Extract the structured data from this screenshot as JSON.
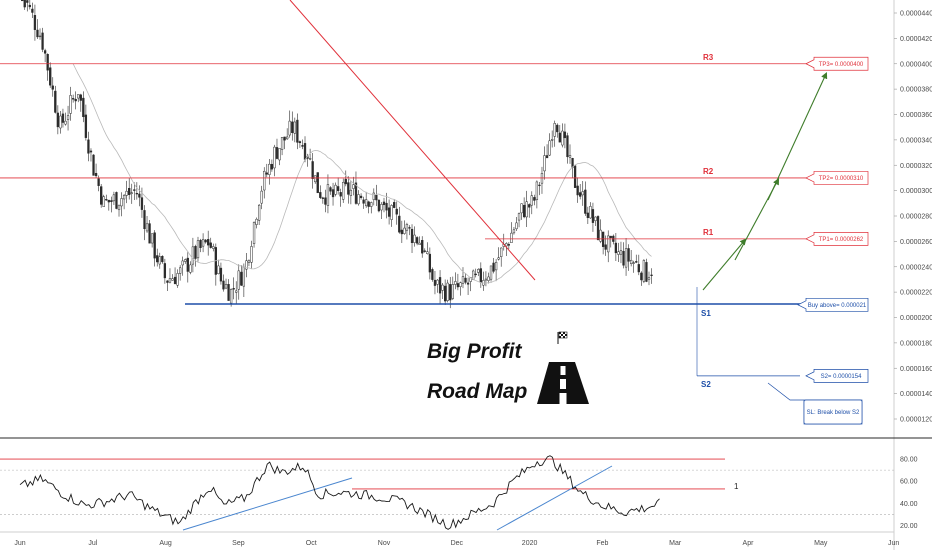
{
  "chart_data": {
    "type": "candlestick",
    "price_axis": {
      "ylim": [
        1.1e-06,
        4.5e-06
      ],
      "ticks": [
        "0.00004400",
        "0.00004200",
        "0.00004000",
        "0.00003800",
        "0.00003600",
        "0.00003400",
        "0.00003200",
        "0.00003000",
        "0.00002800",
        "0.00002600",
        "0.00002400",
        "0.00002200",
        "0.00002000",
        "0.00001800",
        "0.00001600",
        "0.00001400",
        "0.00001200"
      ]
    },
    "x_axis": {
      "labels": [
        "Jun",
        "Jul",
        "Aug",
        "Sep",
        "Oct",
        "Nov",
        "Dec",
        "2020",
        "Feb",
        "Mar",
        "Apr",
        "May",
        "Jun"
      ]
    },
    "price_path": [
      {
        "t": 0.0,
        "p": 4.6e-06
      },
      {
        "t": 0.3,
        "p": 4.2e-06
      },
      {
        "t": 0.55,
        "p": 3.5e-06
      },
      {
        "t": 0.8,
        "p": 3.8e-06
      },
      {
        "t": 1.0,
        "p": 3.2e-06
      },
      {
        "t": 1.15,
        "p": 2.9e-06
      },
      {
        "t": 1.4,
        "p": 2.95e-06
      },
      {
        "t": 1.6,
        "p": 3e-06
      },
      {
        "t": 1.8,
        "p": 2.6e-06
      },
      {
        "t": 2.0,
        "p": 2.3e-06
      },
      {
        "t": 2.2,
        "p": 2.35e-06
      },
      {
        "t": 2.4,
        "p": 2.5e-06
      },
      {
        "t": 2.6,
        "p": 2.6e-06
      },
      {
        "t": 2.75,
        "p": 2.3e-06
      },
      {
        "t": 2.9,
        "p": 2.2e-06
      },
      {
        "t": 3.1,
        "p": 2.4e-06
      },
      {
        "t": 3.3,
        "p": 3e-06
      },
      {
        "t": 3.5,
        "p": 3.3e-06
      },
      {
        "t": 3.75,
        "p": 3.5e-06
      },
      {
        "t": 3.95,
        "p": 3.3e-06
      },
      {
        "t": 4.1,
        "p": 3e-06
      },
      {
        "t": 4.3,
        "p": 2.95e-06
      },
      {
        "t": 4.5,
        "p": 3e-06
      },
      {
        "t": 4.8,
        "p": 2.95e-06
      },
      {
        "t": 5.0,
        "p": 2.85e-06
      },
      {
        "t": 5.3,
        "p": 2.7e-06
      },
      {
        "t": 5.5,
        "p": 2.6e-06
      },
      {
        "t": 5.7,
        "p": 2.25e-06
      },
      {
        "t": 5.9,
        "p": 2.2e-06
      },
      {
        "t": 6.1,
        "p": 2.25e-06
      },
      {
        "t": 6.3,
        "p": 2.3e-06
      },
      {
        "t": 6.5,
        "p": 2.4e-06
      },
      {
        "t": 6.7,
        "p": 2.6e-06
      },
      {
        "t": 6.9,
        "p": 2.85e-06
      },
      {
        "t": 7.05,
        "p": 2.9e-06
      },
      {
        "t": 7.2,
        "p": 3.2e-06
      },
      {
        "t": 7.35,
        "p": 3.6e-06
      },
      {
        "t": 7.45,
        "p": 3.4e-06
      },
      {
        "t": 7.6,
        "p": 3.1e-06
      },
      {
        "t": 7.8,
        "p": 2.85e-06
      },
      {
        "t": 8.0,
        "p": 2.6e-06
      },
      {
        "t": 8.2,
        "p": 2.5e-06
      },
      {
        "t": 8.4,
        "p": 2.45e-06
      },
      {
        "t": 8.6,
        "p": 2.35e-06
      },
      {
        "t": 8.7,
        "p": 2.4e-06
      }
    ],
    "moving_average_color": "#b9b9b9",
    "levels": [
      {
        "label": "R3",
        "price": 4e-06,
        "color": "#e0303a",
        "callout": "TP3= 0.0000400"
      },
      {
        "label": "R2",
        "price": 3.1e-06,
        "color": "#e0303a",
        "callout": "TP2= 0.0000310"
      },
      {
        "label": "R1",
        "price": 2.62e-06,
        "color": "#e0303a",
        "callout": "TP1= 0.0000262"
      },
      {
        "label": "S1",
        "price": 2.1e-06,
        "color": "#1e4fa8",
        "callout": "Buy above= 0.000021"
      },
      {
        "label": "S2",
        "price": 1.54e-06,
        "color": "#1e4fa8",
        "callout": "S2= 0.0000154"
      }
    ],
    "stop_note": "SL: Break below S2",
    "projection_color": "#3f7d2b",
    "trendline_color": "#e0303a",
    "support_line_color": "#1e4fa8",
    "oscillator": {
      "ylim": [
        15,
        90
      ],
      "ticks": [
        "80.00",
        "60.00",
        "40.00",
        "20.00"
      ],
      "series": [
        {
          "t": 0.0,
          "v": 55
        },
        {
          "t": 0.3,
          "v": 62
        },
        {
          "t": 0.6,
          "v": 48
        },
        {
          "t": 0.9,
          "v": 38
        },
        {
          "t": 1.2,
          "v": 42
        },
        {
          "t": 1.5,
          "v": 48
        },
        {
          "t": 1.8,
          "v": 35
        },
        {
          "t": 2.0,
          "v": 28
        },
        {
          "t": 2.2,
          "v": 22
        },
        {
          "t": 2.4,
          "v": 40
        },
        {
          "t": 2.6,
          "v": 55
        },
        {
          "t": 2.8,
          "v": 38
        },
        {
          "t": 3.1,
          "v": 45
        },
        {
          "t": 3.4,
          "v": 75
        },
        {
          "t": 3.6,
          "v": 68
        },
        {
          "t": 3.9,
          "v": 74
        },
        {
          "t": 4.1,
          "v": 48
        },
        {
          "t": 4.4,
          "v": 50
        },
        {
          "t": 4.7,
          "v": 48
        },
        {
          "t": 5.0,
          "v": 45
        },
        {
          "t": 5.3,
          "v": 40
        },
        {
          "t": 5.6,
          "v": 30
        },
        {
          "t": 5.9,
          "v": 20
        },
        {
          "t": 6.2,
          "v": 30
        },
        {
          "t": 6.5,
          "v": 40
        },
        {
          "t": 6.8,
          "v": 62
        },
        {
          "t": 7.1,
          "v": 78
        },
        {
          "t": 7.3,
          "v": 80
        },
        {
          "t": 7.5,
          "v": 65
        },
        {
          "t": 7.7,
          "v": 50
        },
        {
          "t": 8.0,
          "v": 38
        },
        {
          "t": 8.3,
          "v": 32
        },
        {
          "t": 8.6,
          "v": 36
        },
        {
          "t": 8.8,
          "v": 40
        }
      ],
      "levels": [
        {
          "value": 80,
          "color": "#e0303a"
        },
        {
          "value": 53,
          "color": "#e0303a",
          "label": "1"
        }
      ],
      "dashed_levels": [
        70,
        30
      ]
    }
  },
  "banner": {
    "line1": "Big Profit",
    "line2": "Road Map"
  },
  "colors": {
    "red": "#e0303a",
    "blue": "#1e4fa8",
    "green": "#3f7d2b",
    "bull": "#2b2b2b",
    "bear": "#2b2b2b"
  }
}
